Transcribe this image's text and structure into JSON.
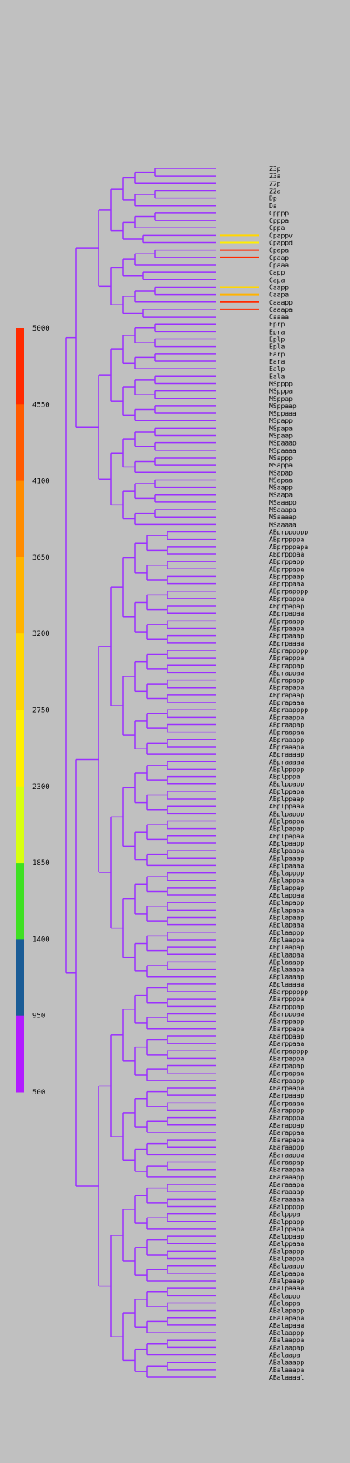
{
  "legend": {
    "ticks": [
      "5000",
      "4550",
      "4100",
      "3650",
      "3200",
      "2750",
      "2300",
      "1850",
      "1400",
      "950",
      "500"
    ],
    "colors": [
      "#ff2a00",
      "#ff5a00",
      "#ff8c00",
      "#ffb300",
      "#ffd700",
      "#fff000",
      "#d8ff10",
      "#3ee022",
      "#1a5c96",
      "#b21cff"
    ]
  },
  "tree": {
    "branch_color": "#9b30ff",
    "leaf_labels": [
      "Z3p",
      "Z3a",
      "Z2p",
      "Z2a",
      "Dp",
      "Da",
      "Cpppp",
      "Cpppa",
      "Cppa",
      "Cpappv",
      "Cpappd",
      "Cpapa",
      "Cpaap",
      "Cpaaa",
      "Capp",
      "Capa",
      "Caapp",
      "Caapa",
      "Caaapp",
      "Caaapa",
      "Caaaa",
      "Eprp",
      "Epra",
      "Eplp",
      "Epla",
      "Earp",
      "Eara",
      "Ealp",
      "Eala",
      "MSpppp",
      "MSpppa",
      "MSppap",
      "MSppaap",
      "MSppaaa",
      "MSpapp",
      "MSpapa",
      "MSpaap",
      "MSpaaap",
      "MSpaaaa",
      "MSappp",
      "MSappa",
      "MSapap",
      "MSapaa",
      "MSaapp",
      "MSaapa",
      "MSaaapp",
      "MSaaapa",
      "MSaaaap",
      "MSaaaaa",
      "ABprpppppp",
      "ABprppppa",
      "ABprpppapa",
      "ABprpppaa",
      "ABprppapp",
      "ABprppapa",
      "ABprppaap",
      "ABprppaaa",
      "ABprpapppp",
      "ABprpappa",
      "ABprpapap",
      "ABprpapaa",
      "ABprpaapp",
      "ABprpaapa",
      "ABprpaaap",
      "ABprpaaaa",
      "ABprappppp",
      "ABprapppa",
      "ABprappap",
      "ABprappaa",
      "ABprapapp",
      "ABprapapa",
      "ABprapaap",
      "ABprapaaa",
      "ABpraapppp",
      "ABpraappa",
      "ABpraapap",
      "ABpraapaa",
      "ABpraaapp",
      "ABpraaapa",
      "ABpraaaap",
      "ABpraaaaa",
      "ABplppppp",
      "ABplpppa",
      "ABplppapp",
      "ABplppapa",
      "ABplppaap",
      "ABplppaaa",
      "ABplpappp",
      "ABplpappa",
      "ABplpapap",
      "ABplpapaa",
      "ABplpaapp",
      "ABplpaapa",
      "ABplpaaap",
      "ABplpaaaa",
      "ABplapppp",
      "ABplapppa",
      "ABplappap",
      "ABplappaa",
      "ABplapapp",
      "ABplapapa",
      "ABplapaap",
      "ABplapaaa",
      "ABplaappp",
      "ABplaappa",
      "ABplaapap",
      "ABplaapaa",
      "ABplaaapp",
      "ABplaaapa",
      "ABplaaaap",
      "ABplaaaaa",
      "ABarpppppp",
      "ABarppppa",
      "ABarpppap",
      "ABarpppaa",
      "ABarppapp",
      "ABarppapa",
      "ABarppaap",
      "ABarppaaa",
      "ABarpapppp",
      "ABarpappa",
      "ABarpapap",
      "ABarpapaa",
      "ABarpaapp",
      "ABarpaapa",
      "ABarpaaap",
      "ABarpaaaa",
      "ABarapppp",
      "ABarapppa",
      "ABarappap",
      "ABarappaa",
      "ABarapapa",
      "ABaraappp",
      "ABaraappa",
      "ABaraapap",
      "ABaraapaa",
      "ABaraaapp",
      "ABaraaapa",
      "ABaraaaap",
      "ABaraaaaa",
      "ABalppppp",
      "ABalpppa",
      "ABalppapp",
      "ABalppapa",
      "ABalppaap",
      "ABalppaaa",
      "ABalpappp",
      "ABalpappa",
      "ABalpaapp",
      "ABalpaapa",
      "ABalpaaap",
      "ABalpaaaa",
      "ABalappp",
      "ABalappa",
      "ABalapapp",
      "ABalapapa",
      "ABalapaaa",
      "ABalaappp",
      "ABalaappa",
      "ABalaapap",
      "ABalaapa",
      "ABalaaapp",
      "ABalaaapa",
      "ABalaaaal"
    ]
  }
}
